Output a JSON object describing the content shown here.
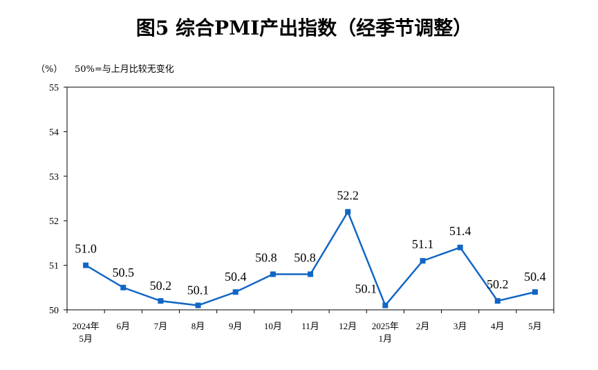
{
  "chart_data": {
    "type": "line",
    "title": "图5  综合PMI产出指数（经季节调整）",
    "unit_label": "（%）",
    "note": "50%=与上月比较无变化",
    "categories": [
      [
        "2024年",
        "5月"
      ],
      [
        "6月"
      ],
      [
        "7月"
      ],
      [
        "8月"
      ],
      [
        "9月"
      ],
      [
        "10月"
      ],
      [
        "11月"
      ],
      [
        "12月"
      ],
      [
        "2025年",
        "1月"
      ],
      [
        "2月"
      ],
      [
        "3月"
      ],
      [
        "4月"
      ],
      [
        "5月"
      ]
    ],
    "values": [
      51.0,
      50.5,
      50.2,
      50.1,
      50.4,
      50.8,
      50.8,
      52.2,
      50.1,
      51.1,
      51.4,
      50.2,
      50.4
    ],
    "value_labels": [
      "51.0",
      "50.5",
      "50.2",
      "50.1",
      "50.4",
      "50.8",
      "50.8",
      "52.2",
      "50.1",
      "51.1",
      "51.4",
      "50.2",
      "50.4"
    ],
    "ylim": [
      50,
      55
    ],
    "yticks": [
      "50",
      "51",
      "52",
      "53",
      "54",
      "55"
    ],
    "grid": false,
    "colors": {
      "line": "#1166c4",
      "marker": "#1166c4"
    }
  }
}
